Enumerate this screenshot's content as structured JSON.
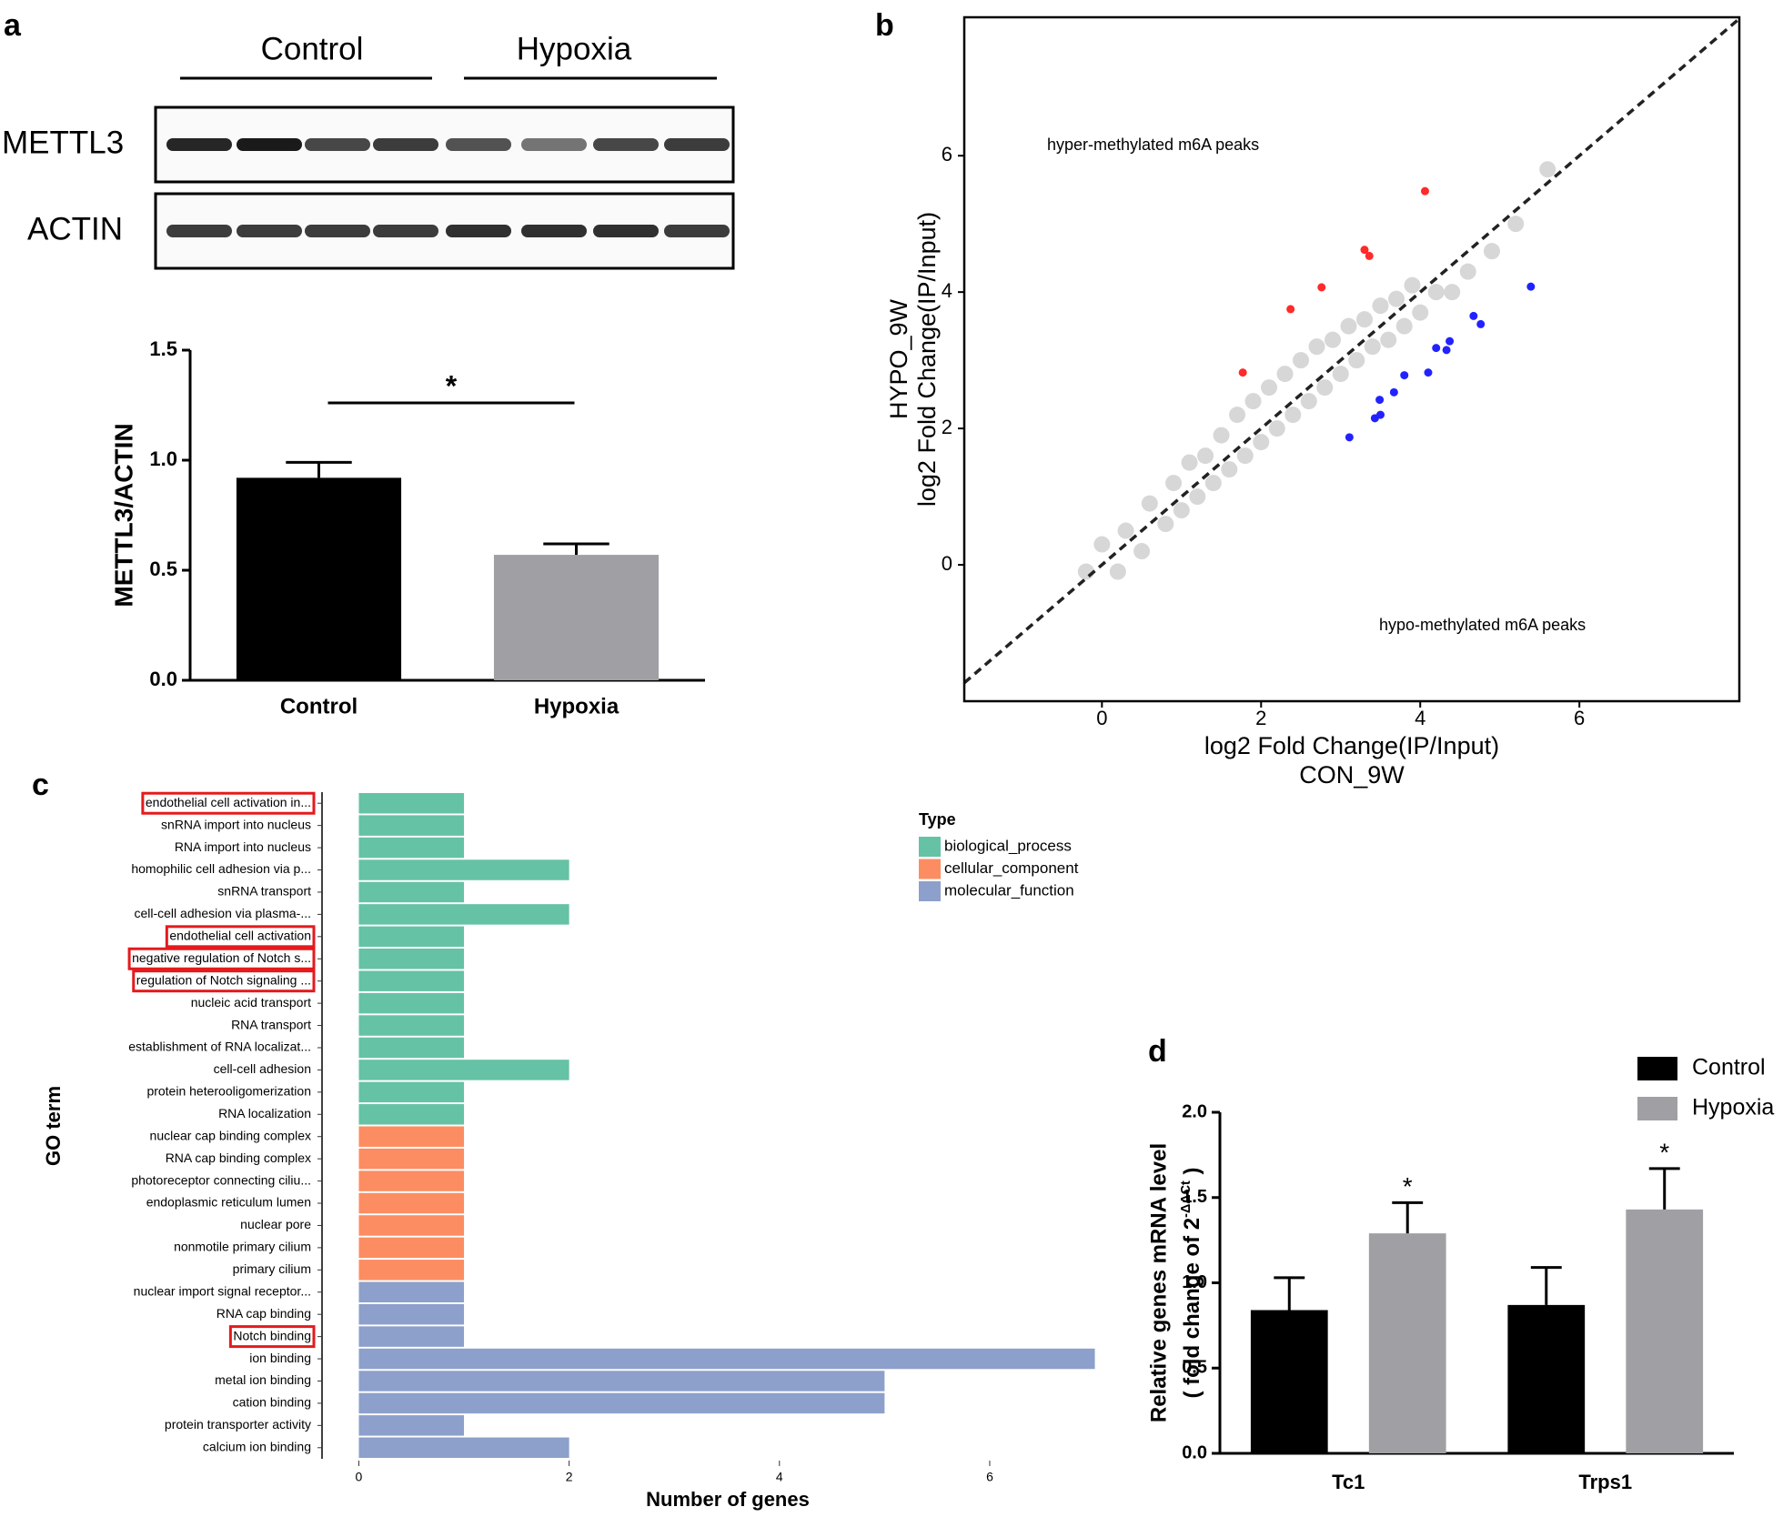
{
  "western_blot": {
    "panel": "a",
    "groups": [
      "Control",
      "Hypoxia"
    ],
    "rows": [
      "METTL3",
      "ACTIN"
    ]
  },
  "chart_data": [
    {
      "type": "bar",
      "categories": [
        "Control",
        "Hypoxia"
      ],
      "values": [
        0.92,
        0.57
      ],
      "errors": [
        0.07,
        0.05
      ],
      "colors": [
        "#000000",
        "#a0a0a4"
      ],
      "ylabel": "METTL3/ACTIN",
      "ylim": [
        0,
        1.5
      ],
      "yticks": [
        {
          "value": 0,
          "label": "0.0"
        },
        {
          "value": 0.5,
          "label": "0.5"
        },
        {
          "value": 1,
          "label": "1.0"
        },
        {
          "value": 1.5,
          "label": "1.5"
        }
      ],
      "significance": "*"
    },
    {
      "type": "scatter",
      "panel": "b",
      "series": [
        {
          "color": "#d3d3d3",
          "x": [
            -0.2,
            0.0,
            0.2,
            0.3,
            0.5,
            0.6,
            0.8,
            0.9,
            1.0,
            1.1,
            1.2,
            1.3,
            1.4,
            1.5,
            1.6,
            1.7,
            1.8,
            1.9,
            2.0,
            2.1,
            2.2,
            2.3,
            2.4,
            2.5,
            2.6,
            2.7,
            2.8,
            2.9,
            3.0,
            3.1,
            3.2,
            3.3,
            3.4,
            3.5,
            3.6,
            3.7,
            3.8,
            3.9,
            4.0,
            4.2,
            4.4,
            4.6,
            4.9,
            5.2,
            5.6
          ],
          "y": [
            -0.1,
            0.3,
            -0.1,
            0.5,
            0.2,
            0.9,
            0.6,
            1.2,
            0.8,
            1.5,
            1.0,
            1.6,
            1.2,
            1.9,
            1.4,
            2.2,
            1.6,
            2.4,
            1.8,
            2.6,
            2.0,
            2.8,
            2.2,
            3.0,
            2.4,
            3.2,
            2.6,
            3.3,
            2.8,
            3.5,
            3.0,
            3.6,
            3.2,
            3.8,
            3.3,
            3.9,
            3.5,
            4.1,
            3.7,
            4.0,
            4.0,
            4.3,
            4.6,
            5.0,
            5.8
          ]
        },
        {
          "name": "hyper-methylated m6A peaks",
          "color": "#ff2a2a",
          "x": [
            4.06,
            3.3,
            3.36,
            2.76,
            2.37,
            1.77
          ],
          "y": [
            5.48,
            4.62,
            4.53,
            4.07,
            3.75,
            2.82
          ]
        },
        {
          "name": "hypo-methylated m6A peaks",
          "color": "#2222ff",
          "x": [
            5.39,
            4.67,
            4.76,
            4.37,
            4.2,
            4.33,
            4.1,
            3.8,
            3.67,
            3.49,
            3.5,
            3.43,
            3.11
          ],
          "y": [
            4.08,
            3.65,
            3.53,
            3.28,
            3.18,
            3.15,
            2.82,
            2.78,
            2.53,
            2.42,
            2.2,
            2.15,
            1.87
          ]
        }
      ],
      "xlabel": [
        "log2 Fold Change(IP/Input)",
        "CON_9W"
      ],
      "ylabel": [
        "HYPO_9W",
        "log2 Fold Change(IP/Input)"
      ],
      "xlim": [
        -1.73,
        8.01
      ],
      "ylim": [
        -2.0,
        8.03
      ],
      "xticks": [
        0,
        2,
        4,
        6
      ],
      "yticks": [
        0,
        2,
        4,
        6
      ],
      "diagonal": true
    },
    {
      "type": "barh",
      "panel": "c",
      "categories": [
        "endothelial cell activation in...",
        "snRNA import into nucleus",
        "RNA import into nucleus",
        "homophilic cell adhesion via p...",
        "snRNA transport",
        "cell-cell adhesion via plasma-...",
        "endothelial cell activation",
        "negative regulation of Notch s...",
        "regulation of Notch signaling ...",
        "nucleic acid transport",
        "RNA transport",
        "establishment of RNA localizat...",
        "cell-cell adhesion",
        "protein heterooligomerization",
        "RNA localization",
        "nuclear cap binding complex",
        "RNA cap binding complex",
        "photoreceptor connecting ciliu...",
        "endoplasmic reticulum lumen",
        "nuclear pore",
        "nonmotile primary cilium",
        "primary cilium",
        "nuclear import signal receptor...",
        "RNA cap binding",
        "Notch binding",
        "ion binding",
        "metal ion binding",
        "cation binding",
        "protein transporter activity",
        "calcium ion binding"
      ],
      "highlight": [
        true,
        false,
        false,
        false,
        false,
        false,
        true,
        true,
        true,
        false,
        false,
        false,
        false,
        false,
        false,
        false,
        false,
        false,
        false,
        false,
        false,
        false,
        false,
        false,
        true,
        false,
        false,
        false,
        false,
        false
      ],
      "series": [
        {
          "name": "biological_process",
          "color": "#66c2a5",
          "values": [
            1,
            1,
            1,
            2,
            1,
            2,
            1,
            1,
            1,
            1,
            1,
            1,
            2,
            1,
            1,
            null,
            null,
            null,
            null,
            null,
            null,
            null,
            null,
            null,
            null,
            null,
            null,
            null,
            null,
            null
          ]
        },
        {
          "name": "cellular_component",
          "color": "#fc8d62",
          "values": [
            null,
            null,
            null,
            null,
            null,
            null,
            null,
            null,
            null,
            null,
            null,
            null,
            null,
            null,
            null,
            1,
            1,
            1,
            1,
            1,
            1,
            1,
            null,
            null,
            null,
            null,
            null,
            null,
            null,
            null
          ]
        },
        {
          "name": "molecular_function",
          "color": "#8da0cb",
          "values": [
            null,
            null,
            null,
            null,
            null,
            null,
            null,
            null,
            null,
            null,
            null,
            null,
            null,
            null,
            null,
            null,
            null,
            null,
            null,
            null,
            null,
            null,
            1,
            1,
            1,
            7,
            5,
            5,
            1,
            2
          ]
        }
      ],
      "legend_title": "Type",
      "xlabel": "Number of genes",
      "ylabel": "GO term",
      "xlim": [
        -0.35,
        7.35
      ],
      "xticks": [
        0,
        2,
        4,
        6
      ]
    },
    {
      "type": "bar",
      "panel": "d",
      "categories": [
        "Tc1",
        "Trps1"
      ],
      "series": [
        {
          "name": "Control",
          "color": "#000000",
          "values": [
            0.84,
            0.87
          ],
          "errors": [
            0.19,
            0.22
          ]
        },
        {
          "name": "Hypoxia",
          "color": "#a0a0a4",
          "values": [
            1.29,
            1.43
          ],
          "errors": [
            0.18,
            0.24
          ],
          "significance": [
            "*",
            "*"
          ]
        }
      ],
      "ylabel": [
        "Relative genes mRNA level",
        [
          "( fold change of 2",
          "-ΔΔCt",
          " )"
        ]
      ],
      "ylim": [
        0,
        2
      ],
      "yticks": [
        {
          "value": 0,
          "label": "0.0"
        },
        {
          "value": 0.5,
          "label": "0.5"
        },
        {
          "value": 1,
          "label": "1.0"
        },
        {
          "value": 1.5,
          "label": "1.5"
        },
        {
          "value": 2,
          "label": "2.0"
        }
      ]
    }
  ]
}
